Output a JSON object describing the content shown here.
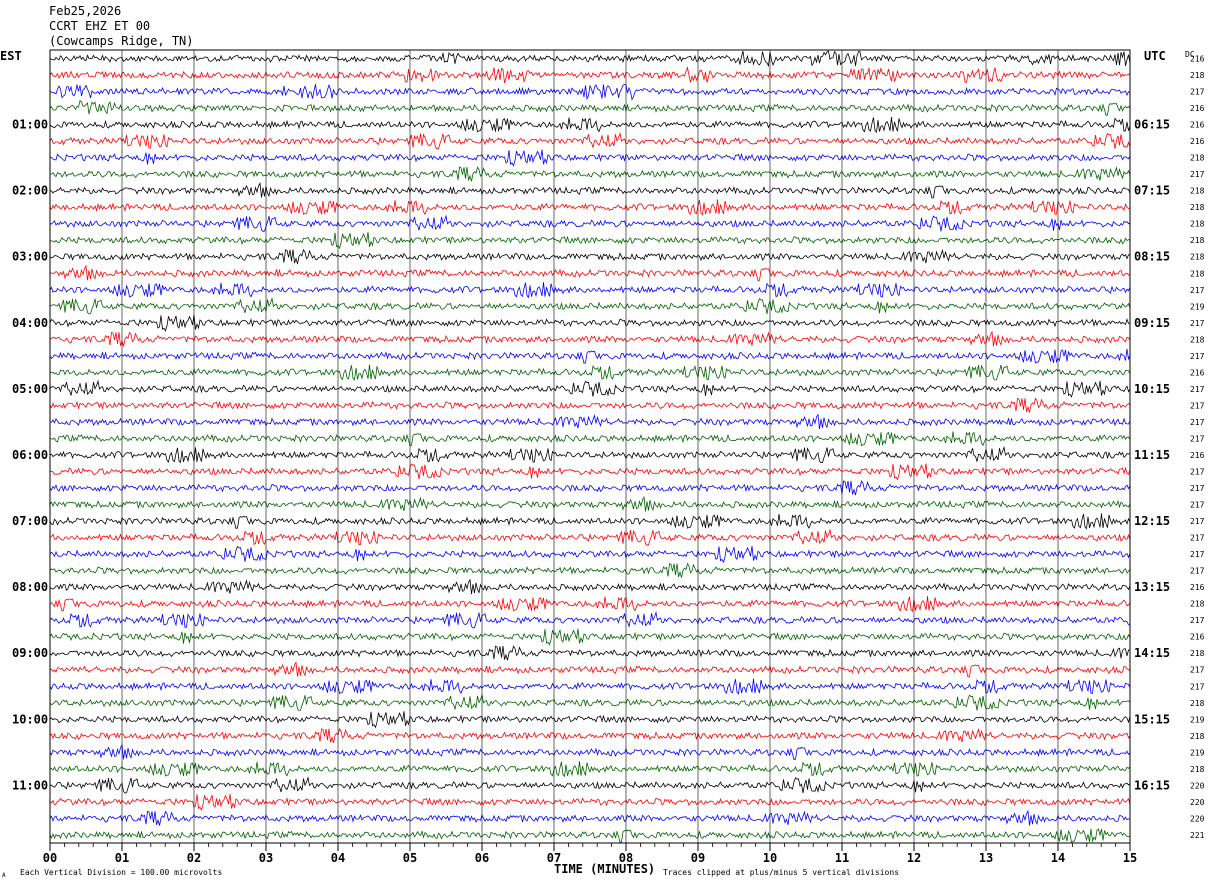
{
  "header": {
    "date": "Feb25,2026",
    "station": "CCRT EHZ ET 00",
    "location": "(Cowcamps Ridge, TN)",
    "left_tz": "EST",
    "right_tz": "UTC",
    "dc_label": "DC"
  },
  "footer": {
    "scale_note": "Each Vertical Division =  100.00 microvolts",
    "xlabel": "TIME (MINUTES)",
    "clip_note": "Traces clipped at plus/minus 5 vertical divisions",
    "corner_mark": "A"
  },
  "colors": {
    "trace_cycle": [
      "#000000",
      "#ff0000",
      "#0000ff",
      "#006400"
    ],
    "grid": "#000000",
    "background": "#ffffff"
  },
  "chart_data": {
    "type": "line",
    "description_units": "seismogram traces, one row per 15 minutes",
    "xlabel": "TIME (MINUTES)",
    "xlim": [
      0,
      15
    ],
    "x_ticks": [
      "00",
      "01",
      "02",
      "03",
      "04",
      "05",
      "06",
      "07",
      "08",
      "09",
      "10",
      "11",
      "12",
      "13",
      "14",
      "15"
    ],
    "row_count": 48,
    "left_hour_labels": [
      "01:00",
      "02:00",
      "03:00",
      "04:00",
      "05:00",
      "06:00",
      "07:00",
      "08:00",
      "09:00",
      "10:00",
      "11:00"
    ],
    "right_hour_labels": [
      "06:15",
      "07:15",
      "08:15",
      "09:15",
      "10:15",
      "11:15",
      "12:15",
      "13:15",
      "14:15",
      "15:15",
      "16:15"
    ],
    "hour_label_rows": [
      4,
      8,
      12,
      16,
      20,
      24,
      28,
      32,
      36,
      40,
      44
    ],
    "dc_offsets": [
      "216",
      "218",
      "217",
      "216",
      "216",
      "216",
      "218",
      "217",
      "218",
      "218",
      "218",
      "218",
      "218",
      "218",
      "217",
      "219",
      "217",
      "218",
      "217",
      "216",
      "217",
      "217",
      "217",
      "217",
      "216",
      "217",
      "217",
      "217",
      "217",
      "217",
      "217",
      "217",
      "216",
      "218",
      "217",
      "216",
      "218",
      "217",
      "217",
      "218",
      "219",
      "218",
      "219",
      "218",
      "220",
      "220",
      "220",
      "221"
    ]
  }
}
